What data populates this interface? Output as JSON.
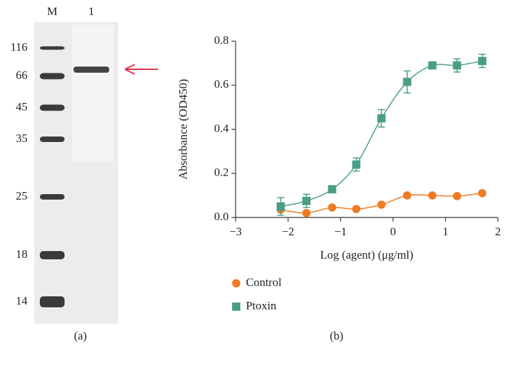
{
  "gel": {
    "lanes": [
      "M",
      "1"
    ],
    "markers": [
      116,
      66,
      45,
      35,
      25,
      18,
      14
    ]
  },
  "panels": [
    "(a)",
    "(b)"
  ],
  "chart_data": {
    "type": "scatter",
    "x_label": "Log (agent) (μg/ml)",
    "y_label": "Absorbance (OD450)",
    "x": [
      -2.14,
      -1.65,
      -1.16,
      -0.7,
      -0.22,
      0.27,
      0.75,
      1.22,
      1.7
    ],
    "series": [
      {
        "name": "Control",
        "color": "#f07b24",
        "marker": "circle",
        "values": [
          0.035,
          0.02,
          0.045,
          0.038,
          0.058,
          0.1,
          0.1,
          0.097,
          0.11
        ]
      },
      {
        "name": "Ptoxin",
        "color": "#4a9e87",
        "marker": "square",
        "values": [
          0.05,
          0.075,
          0.128,
          0.24,
          0.45,
          0.615,
          0.69,
          0.69,
          0.71
        ],
        "errors": [
          0.04,
          0.03,
          0.01,
          0.03,
          0.04,
          0.05,
          0.01,
          0.03,
          0.03
        ]
      }
    ],
    "xlim": [
      -3,
      2
    ],
    "xticks": [
      {
        "value": -3,
        "label": "−3"
      },
      {
        "value": -2,
        "label": "−2"
      },
      {
        "value": -1,
        "label": "−1"
      },
      0,
      1,
      2
    ],
    "ylim": [
      0,
      0.8
    ],
    "yticks": [
      {
        "value": 0,
        "label": "0.0"
      },
      0.2,
      0.4,
      0.6,
      0.8
    ],
    "legend": "below"
  }
}
